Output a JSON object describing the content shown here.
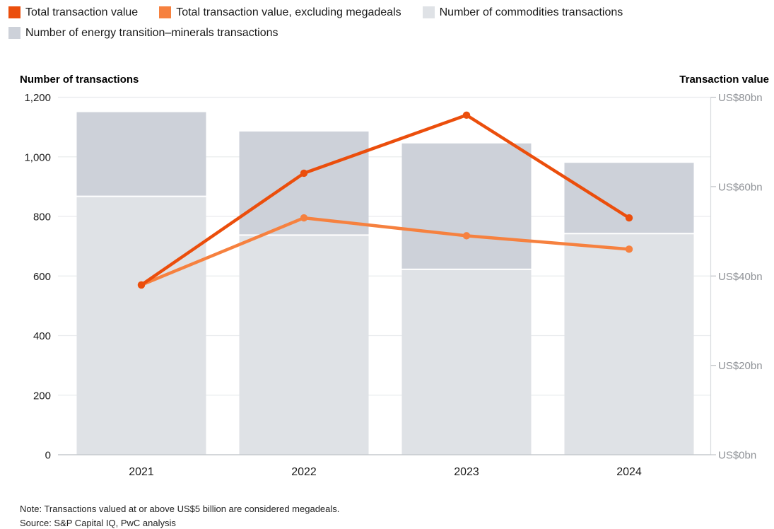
{
  "legend": {
    "items": [
      {
        "label": "Total transaction value",
        "color": "#eb4e0c"
      },
      {
        "label": "Total transaction value, excluding megadeals",
        "color": "#f6813f"
      },
      {
        "label": "Number of commodities transactions",
        "color": "#dfe2e6"
      },
      {
        "label": "Number of energy transition–minerals transactions",
        "color": "#cdd1d9"
      }
    ]
  },
  "axes": {
    "left_title": "Number of transactions",
    "right_title": "Transaction value"
  },
  "note": "Note: Transactions valued at or above US$5 billion are considered megadeals.",
  "source": "Source: S&P Capital IQ, PwC analysis",
  "chart_data": {
    "type": "bar",
    "subtype": "stacked-bar-with-dual-axis-lines",
    "categories": [
      "2021",
      "2022",
      "2023",
      "2024"
    ],
    "bar_series": [
      {
        "name": "Number of commodities transactions",
        "axis": "left",
        "color": "#dfe2e6",
        "values": [
          865,
          735,
          620,
          740
        ]
      },
      {
        "name": "Number of energy transition–minerals transactions",
        "axis": "left",
        "color": "#cdd1d9",
        "values": [
          285,
          350,
          425,
          240
        ]
      }
    ],
    "bar_stack_totals": [
      1150,
      1085,
      1045,
      980
    ],
    "line_series": [
      {
        "name": "Total transaction value",
        "axis": "right",
        "color": "#eb4e0c",
        "values_usd_bn": [
          38,
          63,
          76,
          53
        ]
      },
      {
        "name": "Total transaction value, excluding megadeals",
        "axis": "right",
        "color": "#f6813f",
        "values_usd_bn": [
          38,
          53,
          49,
          46
        ]
      }
    ],
    "left_axis": {
      "title": "Number of transactions",
      "min": 0,
      "max": 1200,
      "tick_interval": 200,
      "tick_labels": [
        "0",
        "200",
        "400",
        "600",
        "800",
        "1,000",
        "1,200"
      ]
    },
    "right_axis": {
      "title": "Transaction value",
      "min": 0,
      "max": 80,
      "tick_interval": 20,
      "tick_labels": [
        "US$0bn",
        "US$20bn",
        "US$40bn",
        "US$60bn",
        "US$80bn"
      ]
    },
    "grid": true,
    "legend_position": "top"
  }
}
